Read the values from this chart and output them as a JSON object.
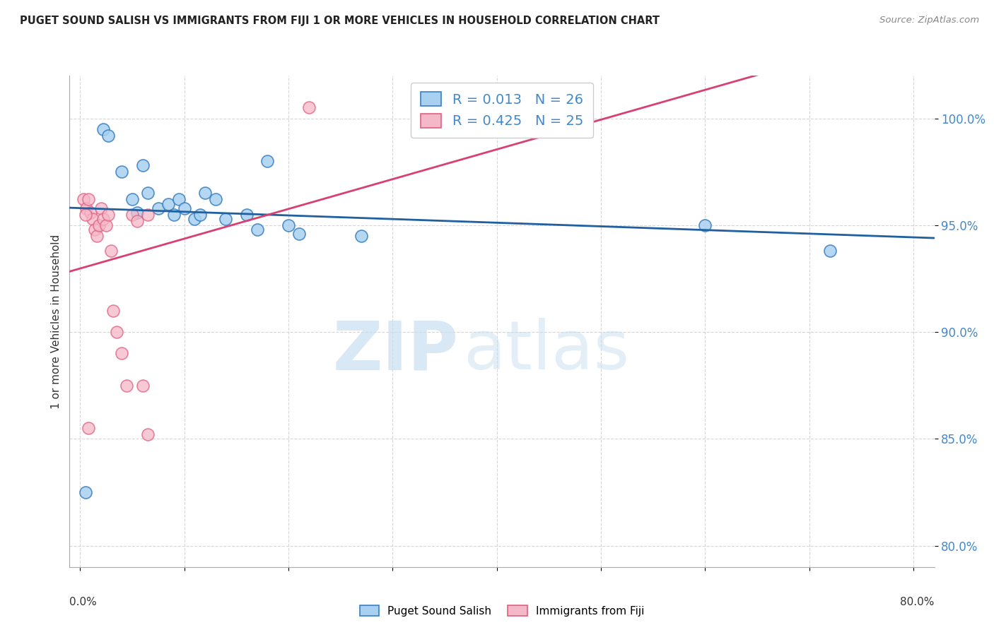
{
  "title": "PUGET SOUND SALISH VS IMMIGRANTS FROM FIJI 1 OR MORE VEHICLES IN HOUSEHOLD CORRELATION CHART",
  "source": "Source: ZipAtlas.com",
  "ylabel": "1 or more Vehicles in Household",
  "ytick_vals": [
    80.0,
    85.0,
    90.0,
    95.0,
    100.0
  ],
  "xtick_vals": [
    0.0,
    0.1,
    0.2,
    0.3,
    0.4,
    0.5,
    0.6,
    0.7,
    0.8
  ],
  "xlim": [
    -0.01,
    0.82
  ],
  "ylim": [
    79.0,
    102.0
  ],
  "blue_fill": "#a8d0f0",
  "blue_edge": "#3a7fc1",
  "pink_fill": "#f5b8c8",
  "pink_edge": "#e06080",
  "blue_line_color": "#2060a0",
  "pink_line_color": "#d84070",
  "legend_R_blue": "R = 0.013",
  "legend_N_blue": "N = 26",
  "legend_R_pink": "R = 0.425",
  "legend_N_pink": "N = 25",
  "series1_label": "Puget Sound Salish",
  "series2_label": "Immigrants from Fiji",
  "blue_x": [
    0.005,
    0.022,
    0.027,
    0.04,
    0.05,
    0.055,
    0.06,
    0.065,
    0.075,
    0.085,
    0.09,
    0.095,
    0.1,
    0.11,
    0.115,
    0.12,
    0.13,
    0.14,
    0.16,
    0.17,
    0.18,
    0.2,
    0.21,
    0.6,
    0.72,
    0.27
  ],
  "blue_y": [
    82.5,
    99.5,
    99.2,
    97.5,
    96.2,
    95.6,
    97.8,
    96.5,
    95.8,
    96.0,
    95.5,
    96.2,
    95.8,
    95.3,
    95.5,
    96.5,
    96.2,
    95.3,
    95.5,
    94.8,
    98.0,
    95.0,
    94.6,
    95.0,
    93.8,
    94.5
  ],
  "pink_x": [
    0.003,
    0.006,
    0.008,
    0.01,
    0.012,
    0.014,
    0.016,
    0.018,
    0.02,
    0.022,
    0.025,
    0.027,
    0.03,
    0.032,
    0.035,
    0.04,
    0.045,
    0.05,
    0.055,
    0.06,
    0.065,
    0.005,
    0.008,
    0.065,
    0.22
  ],
  "pink_y": [
    96.2,
    95.8,
    96.2,
    95.6,
    95.3,
    94.8,
    94.5,
    95.0,
    95.8,
    95.3,
    95.0,
    95.5,
    93.8,
    91.0,
    90.0,
    89.0,
    87.5,
    95.5,
    95.2,
    87.5,
    95.5,
    95.5,
    85.5,
    85.2,
    100.5
  ],
  "watermark_zip": "ZIP",
  "watermark_atlas": "atlas",
  "background_color": "#ffffff",
  "grid_color": "#cccccc",
  "tick_color": "#4488cc",
  "title_color": "#222222"
}
